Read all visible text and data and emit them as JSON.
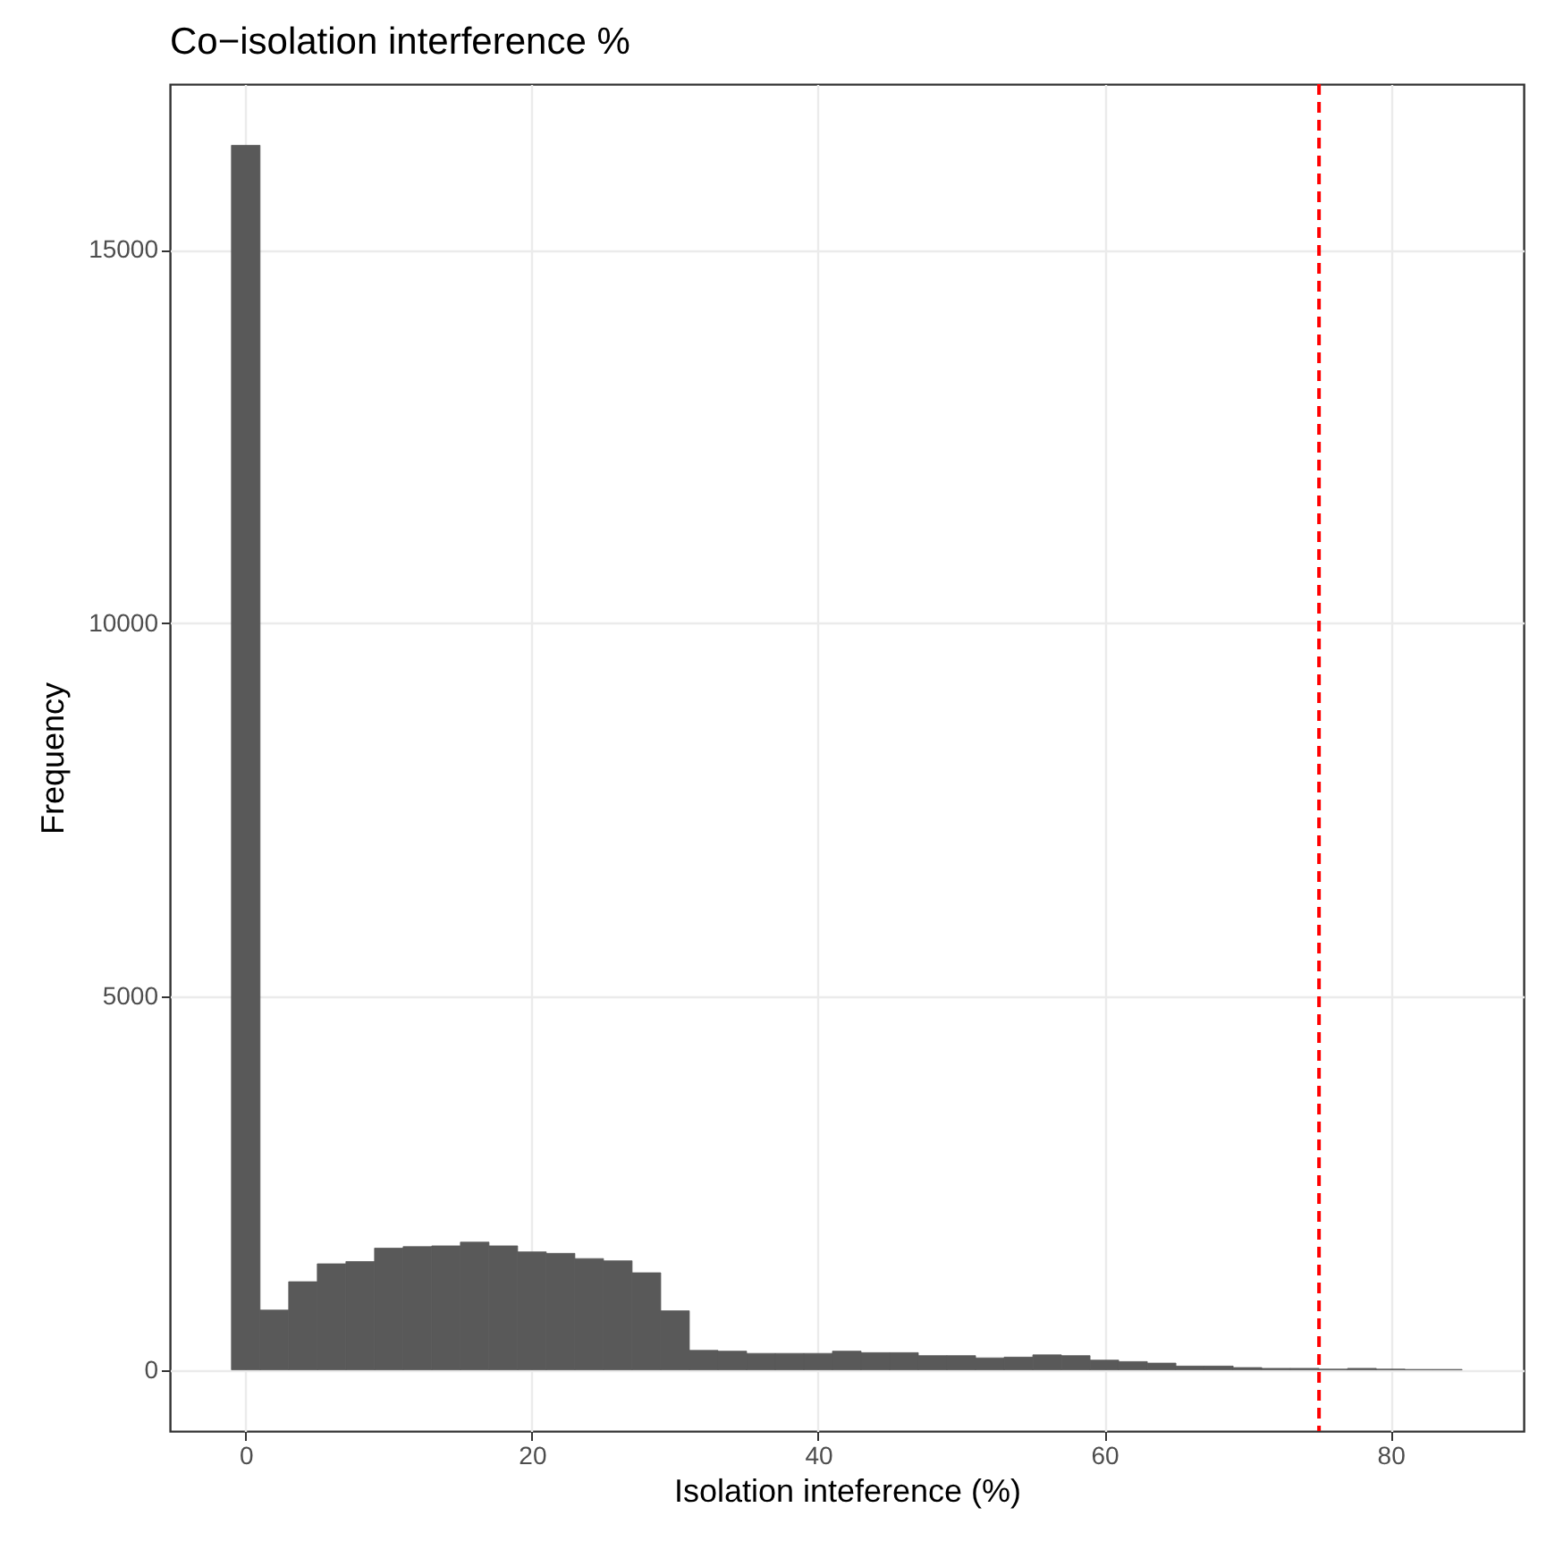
{
  "chart_data": {
    "type": "histogram",
    "title": "Co−isolation interference %",
    "xlabel": "Isolation inteference (%)",
    "ylabel": "Frequency",
    "bins": [
      -1,
      1,
      3,
      5,
      7,
      9,
      11,
      13,
      15,
      17,
      19,
      21,
      23,
      25,
      27,
      29,
      31,
      33,
      35,
      37,
      39,
      41,
      43,
      45,
      47,
      49,
      51,
      53,
      55,
      57,
      59,
      61,
      63,
      65,
      67,
      69,
      71,
      73,
      75,
      77,
      79,
      81,
      83,
      85
    ],
    "values": [
      16400,
      800,
      1180,
      1420,
      1450,
      1630,
      1650,
      1660,
      1710,
      1660,
      1580,
      1560,
      1490,
      1460,
      1300,
      790,
      260,
      250,
      220,
      220,
      220,
      250,
      230,
      230,
      190,
      190,
      160,
      170,
      200,
      190,
      130,
      110,
      90,
      50,
      50,
      30,
      20,
      20,
      10,
      20,
      10,
      5,
      5
    ],
    "color": "#595959",
    "xlim": [
      -5.3,
      89.3
    ],
    "xticks": [
      0,
      20,
      40,
      60,
      80
    ],
    "ylim": [
      -820,
      17220
    ],
    "yticks": [
      0,
      5000,
      10000,
      15000
    ],
    "grid": true,
    "ref_lines": [
      {
        "axis": "x",
        "value": 75,
        "color": "#ff0000",
        "line_style": "dashed"
      }
    ]
  }
}
